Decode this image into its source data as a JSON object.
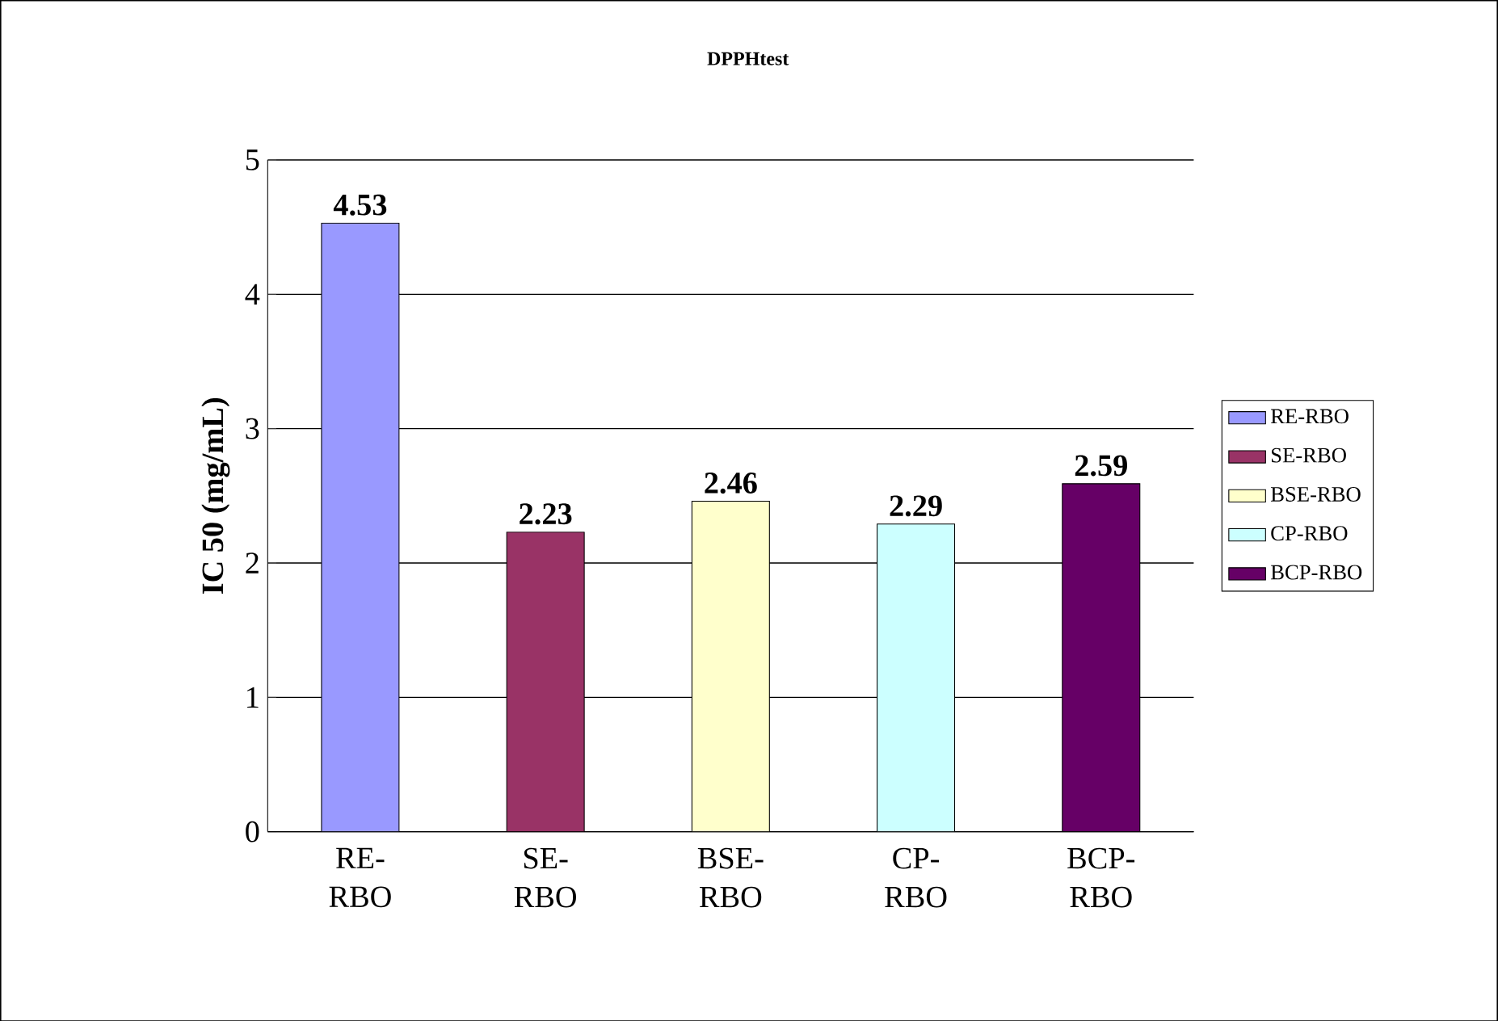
{
  "chart_data": {
    "type": "bar",
    "title": "DPPHtest",
    "ylabel": "IC 50 (mg/mL)",
    "categories": [
      "RE-RBO",
      "SE-RBO",
      "BSE-RBO",
      "CP-RBO",
      "BCP-RBO"
    ],
    "series": [
      {
        "name": "RE-RBO",
        "color": "#9999ff",
        "values": [
          4.53,
          null,
          null,
          null,
          null
        ]
      },
      {
        "name": "SE-RBO",
        "color": "#993366",
        "values": [
          null,
          2.23,
          null,
          null,
          null
        ]
      },
      {
        "name": "BSE-RBO",
        "color": "#ffffcc",
        "values": [
          null,
          null,
          2.46,
          null,
          null
        ]
      },
      {
        "name": "CP-RBO",
        "color": "#ccffff",
        "values": [
          null,
          null,
          null,
          2.29,
          null
        ]
      },
      {
        "name": "BCP-RBO",
        "color": "#660066",
        "values": [
          null,
          null,
          null,
          null,
          2.59
        ]
      }
    ],
    "ylim": [
      0,
      5
    ],
    "yticks": [
      0,
      1,
      2,
      3,
      4,
      5
    ],
    "grid": "y",
    "legend": "right",
    "data_labels": true
  }
}
